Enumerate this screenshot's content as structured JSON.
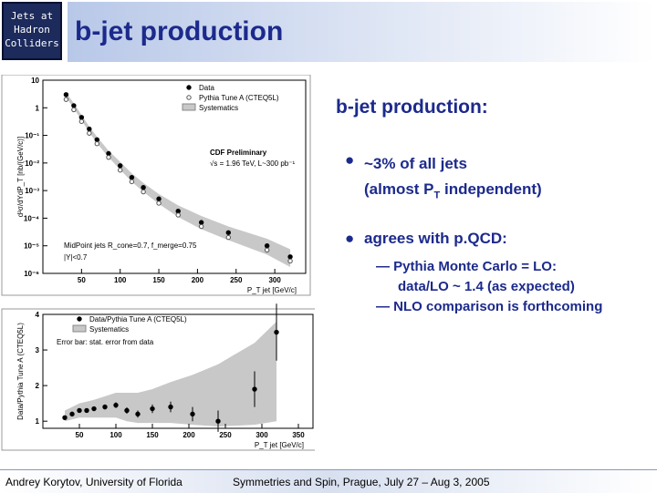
{
  "header": {
    "badge": [
      "Jets at",
      "Hadron",
      "Colliders"
    ],
    "title": "b-jet production"
  },
  "body": {
    "heading": "b-jet production:",
    "bullet1": {
      "line1": "~3% of all jets",
      "line2a": "(almost P",
      "line2sub": "T",
      "line2b": " independent)"
    },
    "bullet2": {
      "text": "agrees with p.QCD:",
      "subs": [
        "Pythia Monte Carlo = LO:",
        "data/LO ~ 1.4 (as expected)",
        "NLO comparison is forthcoming"
      ]
    }
  },
  "footer": {
    "left": "Andrey Korytov, University of Florida",
    "right": "Symmetries and Spin, Prague, July 27 – Aug 3, 2005"
  },
  "chart_data": [
    {
      "type": "scatter",
      "log_y": true,
      "xlabel": "P_T jet [GeV/c]",
      "ylabel": "d²σ/dYdP_T [nb/(GeV/c)]",
      "annotations": [
        "CDF Preliminary",
        "√s = 1.96 TeV, L~300 pb⁻¹",
        "MidPoint jets R_cone=0.7, f_merge=0.75",
        "|Y|<0.7"
      ],
      "xlim": [
        0,
        340
      ],
      "xticks": [
        50,
        100,
        150,
        200,
        250,
        300
      ],
      "ylim": [
        1e-06,
        10
      ],
      "yticks": [
        10,
        1,
        {
          "value": 0.1,
          "label": "10⁻¹"
        },
        {
          "value": 0.01,
          "label": "10⁻²"
        },
        {
          "value": 0.001,
          "label": "10⁻³"
        },
        {
          "value": 0.0001,
          "label": "10⁻⁴"
        },
        {
          "value": 1e-05,
          "label": "10⁻⁵"
        },
        {
          "value": 1e-06,
          "label": "10⁻⁶"
        }
      ],
      "x": [
        30,
        40,
        50,
        60,
        70,
        85,
        100,
        115,
        130,
        150,
        175,
        205,
        240,
        290,
        320
      ],
      "series": [
        {
          "name": "Data",
          "color": "#000000",
          "values": [
            3,
            1.2,
            0.45,
            0.17,
            0.07,
            0.022,
            0.008,
            0.003,
            0.0013,
            0.0005,
            0.00018,
            7e-05,
            3e-05,
            1e-05,
            4e-06
          ]
        },
        {
          "name": "Pythia Tune A (CTEQ5L)",
          "color": "#555555",
          "values": [
            2,
            0.85,
            0.32,
            0.12,
            0.05,
            0.016,
            0.0055,
            0.0021,
            0.0009,
            0.00035,
            0.00013,
            5e-05,
            2e-05,
            7e-06,
            2.8e-06
          ]
        },
        {
          "name": "Systematics",
          "color": "#c8c8c8",
          "lower": [
            2.4,
            0.95,
            0.35,
            0.13,
            0.052,
            0.016,
            0.0057,
            0.0021,
            0.0009,
            0.00033,
            0.00011,
            4e-05,
            1.6e-05,
            4.8e-06,
            1.7e-06
          ],
          "upper": [
            3.6,
            1.45,
            0.55,
            0.21,
            0.09,
            0.028,
            0.011,
            0.0042,
            0.0019,
            0.00075,
            0.00029,
            0.00012,
            5e-05,
            1.8e-05,
            7.5e-06
          ]
        }
      ]
    },
    {
      "type": "scatter",
      "log_y": false,
      "xlabel": "P_T jet [GeV/c]",
      "ylabel": "Data/Pythia Tune A (CTEQ5L)",
      "annotations": [
        "Error bar: stat. error from data"
      ],
      "xlim": [
        0,
        370
      ],
      "xticks": [
        50,
        100,
        150,
        200,
        250,
        300,
        350
      ],
      "ylim": [
        0.8,
        4
      ],
      "yticks": [
        1,
        2,
        3,
        4
      ],
      "x": [
        30,
        40,
        50,
        60,
        70,
        85,
        100,
        115,
        130,
        150,
        175,
        205,
        240,
        290,
        320
      ],
      "series": [
        {
          "name": "Data/Pythia Tune A (CTEQ5L)",
          "color": "#000000",
          "values": [
            1.1,
            1.2,
            1.3,
            1.3,
            1.35,
            1.4,
            1.45,
            1.3,
            1.2,
            1.35,
            1.4,
            1.2,
            1.0,
            1.9,
            3.5
          ],
          "errors": [
            0.04,
            0.04,
            0.05,
            0.05,
            0.06,
            0.07,
            0.08,
            0.09,
            0.1,
            0.12,
            0.15,
            0.2,
            0.3,
            0.5,
            0.8
          ]
        },
        {
          "name": "Systematics",
          "color": "#c8c8c8",
          "lower": [
            1.0,
            1.05,
            1.1,
            1.1,
            1.1,
            1.1,
            1.1,
            1.0,
            0.95,
            0.95,
            0.95,
            0.9,
            0.85,
            0.9,
            1.0
          ],
          "upper": [
            1.3,
            1.4,
            1.5,
            1.55,
            1.6,
            1.7,
            1.8,
            1.8,
            1.8,
            1.9,
            2.1,
            2.3,
            2.6,
            3.2,
            3.8
          ]
        }
      ]
    }
  ]
}
